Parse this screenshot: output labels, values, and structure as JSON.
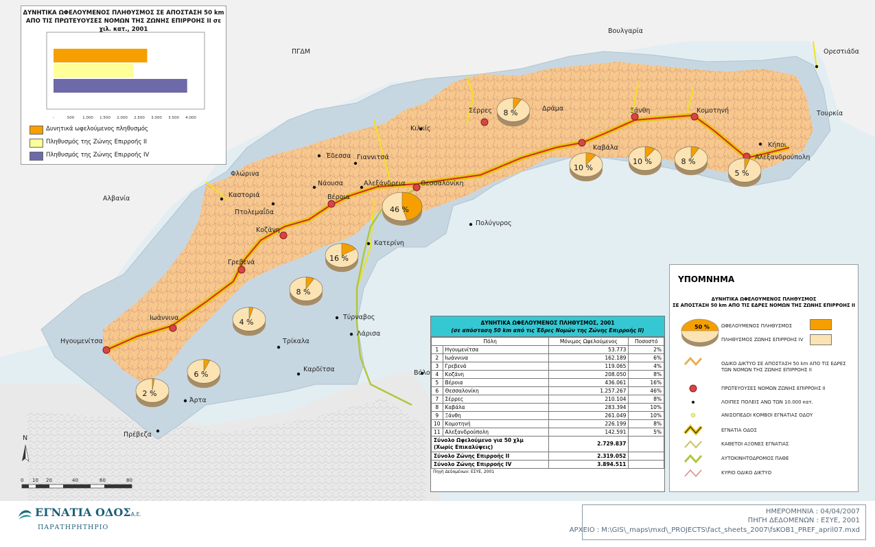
{
  "chart": {
    "title_line1": "ΔΥΝΗΤΙΚΑ ΩΦΕΛΟΥΜΕΝΟΣ ΠΛΗΘΥΣΜΟΣ ΣΕ ΑΠΟΣΤΑΣΗ 50 km",
    "title_line2": "ΑΠΟ ΤΙΣ ΠΡΩΤΕΥΟΥΣΕΣ ΝΟΜΩΝ ΤΗΣ ΖΩΝΗΣ ΕΠΙΡΡΟΗΣ ΙΙ σε χιλ. κατ., 2001",
    "legend": [
      {
        "label": "Δυνητικά ωφελούμενος πληθυσμός",
        "color": "#f5a000"
      },
      {
        "label": "Πληθυσμός της Ζώνης Επιρροής ΙΙ",
        "color": "#ffff99"
      },
      {
        "label": "Πληθυσμός της Ζώνης Επιρροής ΙV",
        "color": "#6e69a8"
      }
    ]
  },
  "chart_data": {
    "type": "bar",
    "orientation": "horizontal",
    "categories": [
      "Δυνητικά ωφελούμενος πληθυσμός",
      "Πληθυσμός της Ζώνης Επιρροής ΙΙ",
      "Πληθυσμός της Ζώνης Επιρροής ΙV"
    ],
    "values": [
      2729.837,
      2319.052,
      3894.511
    ],
    "colors": [
      "#f5a000",
      "#ffff99",
      "#6e69a8"
    ],
    "xlim": [
      0,
      4000
    ],
    "xticks": [
      "-",
      "500",
      "1.000",
      "1.500",
      "2.000",
      "2.500",
      "3.000",
      "3.500",
      "4.000"
    ],
    "grid": false
  },
  "places": {
    "bulgaria": "Βουλγαρία",
    "fyrom": "ΠΓΔΜ",
    "turkey": "Τουρκία",
    "albania": "Αλβανία",
    "orestiada": "Ορεστιάδα",
    "serres": "Σέρρες",
    "drama": "Δράμα",
    "xanthi": "Ξάνθη",
    "komotini": "Κομοτηνή",
    "kilkis": "Κιλκίς",
    "kavala": "Καβάλα",
    "kipoi": "Κήποι",
    "alexandroupoli": "Αλεξανδρούπολη",
    "edessa": "Έδεσσα",
    "giannitsa": "Γιαννιτσά",
    "florina": "Φλώρινα",
    "kastoria": "Καστοριά",
    "ptolemaida": "Πτολεμαΐδα",
    "naousa": "Νάουσα",
    "alexandreia": "Αλεξάνδρεια",
    "thessaloniki": "Θεσσαλονίκη",
    "veroia": "Βέροια",
    "polygyros": "Πολύγυρος",
    "kozani": "Κοζάνη",
    "katerini": "Κατερίνη",
    "grevena": "Γρεβενά",
    "tyrnavos": "Τύρναβος",
    "larisa": "Λάρισα",
    "ioannina": "Ιωάννινα",
    "trikala": "Τρίκαλα",
    "igoumenitsa": "Ηγουμενίτσα",
    "karditsa": "Καρδίτσα",
    "volos": "Βόλο",
    "arta": "Άρτα",
    "preveza": "Πρέβεζα"
  },
  "pies": [
    {
      "pct": "8 %",
      "value": 8
    },
    {
      "pct": "10 %",
      "value": 10
    },
    {
      "pct": "10 %",
      "value": 10
    },
    {
      "pct": "8 %",
      "value": 8
    },
    {
      "pct": "5 %",
      "value": 5
    },
    {
      "pct": "46 %",
      "value": 46
    },
    {
      "pct": "16 %",
      "value": 16
    },
    {
      "pct": "8 %",
      "value": 8
    },
    {
      "pct": "4 %",
      "value": 4
    },
    {
      "pct": "6 %",
      "value": 6
    },
    {
      "pct": "2 %",
      "value": 2
    }
  ],
  "scale": {
    "ticks": [
      "0",
      "10",
      "20",
      "40",
      "60",
      "80"
    ],
    "north": "N"
  },
  "table": {
    "title": "ΔΥΝΗΤΙΚΑ ΩΦΕΛΟΥΜΕΝΟΣ ΠΛΗΘΥΣΜΟΣ, 2001",
    "subtitle": "(σε απόσταση 50 km από τις Έδρες Νομών της Ζώνης Επιρροής ΙΙ)",
    "headers": [
      "Πόλη",
      "Μόνιμος Ωφελούμενος",
      "Ποσοστό"
    ],
    "rows": [
      {
        "n": "1",
        "city": "Ηγουμενίτσα",
        "pop": "53.773",
        "pct": "2%"
      },
      {
        "n": "2",
        "city": "Ιωάννινα",
        "pop": "162.189",
        "pct": "6%"
      },
      {
        "n": "3",
        "city": "Γρεβενά",
        "pop": "119.065",
        "pct": "4%"
      },
      {
        "n": "4",
        "city": "Κοζάνη",
        "pop": "208.050",
        "pct": "8%"
      },
      {
        "n": "5",
        "city": "Βέροια",
        "pop": "436.061",
        "pct": "16%"
      },
      {
        "n": "6",
        "city": "Θεσσαλονίκη",
        "pop": "1.257.267",
        "pct": "46%"
      },
      {
        "n": "7",
        "city": "Σέρρες",
        "pop": "210.104",
        "pct": "8%"
      },
      {
        "n": "8",
        "city": "Καβάλα",
        "pop": "283.394",
        "pct": "10%"
      },
      {
        "n": "9",
        "city": "Ξάνθη",
        "pop": "261.049",
        "pct": "10%"
      },
      {
        "n": "10",
        "city": "Κομοτηνή",
        "pop": "226.199",
        "pct": "8%"
      },
      {
        "n": "11",
        "city": "Αλεξανδρούπολη",
        "pop": "142.591",
        "pct": "5%"
      }
    ],
    "total_label1": "Σύνολο Ωφελούμενο για 50 χλμ",
    "total_label2": "(Χωρίς Επικαλύψεις)",
    "total_value": "2.729.837",
    "zone2_label": "Σύνολο Ζώνης Επιρροής ΙΙ",
    "zone2_value": "2.319.052",
    "zone4_label": "Σύνολο Ζώνης Επιρροής ΙV",
    "zone4_value": "3.894.511",
    "source": "Πηγή Δεδομένων: ΕΣΥΕ, 2001"
  },
  "legend": {
    "title": "ΥΠΟΜΝΗΜΑ",
    "sub1": "ΔΥΝΗΤΙΚΑ ΩΦΕΛΟΥΜΕΝΟΣ ΠΛΗΘΥΣΜΟΣ",
    "sub2": "ΣΕ ΑΠΟΣΤΑΣΗ 50 km ΑΠΟ ΤΙΣ ΕΔΡΕΣ ΝΟΜΩΝ ΤΗΣ ΖΩΝΗΣ ΕΠΙΡΡΟΗΣ ΙΙ",
    "pie_pct": "50 %",
    "benefit": "ΩΦΕΛΟΥΜΕΝΟΣ ΠΛΗΘΥΣΜΟΣ",
    "zone4pop": "ΠΛΗΘΥΣΜΟΣ ΖΩΝΗΣ ΕΠΙΡΡΟΗΣ ΙV",
    "roads1": "ΟΔΙΚΟ ΔΙΚΤΥΟ ΣΕ ΑΠΟΣΤΑΣΗ 50 km ΑΠΟ ΤΙΣ ΕΔΡΕΣ",
    "roads2": "ΤΩΝ ΝΟΜΩΝ ΤΗΣ ΖΩΝΗΣ ΕΠΙΡΡΟΗΣ ΙΙ",
    "capitals": "ΠΡΩΤΕΥΟΥΣΕΣ ΝΟΜΩΝ ΖΩΝΗΣ ΕΠΙΡΡΟΗΣ ΙΙ",
    "towns": "ΛΟΙΠΕΣ ΠΟΛΕΙΣ ΑΝΩ ΤΩΝ 10.000 κατ.",
    "nodes": "ΑΝΙΣΟΠΕΔΟΙ ΚΟΜΒΟΙ ΕΓΝΑΤΙΑΣ ΟΔΟΥ",
    "egnatia": "ΕΓΝΑΤΙΑ ΟΔΟΣ",
    "vertical": "ΚΑΘΕΤΟΙ ΑΞΟΝΕΣ ΕΓΝΑΤΙΑΣ",
    "pathe": "ΑΥΤΟΚΙΝΗΤΟΔΡΟΜΟΣ ΠΑΘΕ",
    "main": "ΚΥΡΙΟ ΟΔΙΚΟ ΔΙΚΤΥΟ",
    "colors": {
      "benefit": "#f5a000",
      "zone": "#fbe3b4"
    }
  },
  "footer": {
    "logo_name": "ΕΓΝΑΤΙΑ ΟΔΟΣ",
    "logo_suffix": "Α.Ε.",
    "logo_sub": "ΠΑΡΑΤΗΡΗΤΗΡΙΟ",
    "date": "ΗΜΕΡΟΜΗΝΙΑ : 04/04/2007",
    "source": "ΠΗΓΗ ΔΕΔΟΜΕΝΩΝ : ΕΣΥΕ, 2001",
    "file": "ΑΡΧΕΙΟ : M:\\GIS\\_maps\\mxd\\_PROJECTS\\fact_sheets_2007\\fsKOB1_PREF_april07.mxd"
  }
}
